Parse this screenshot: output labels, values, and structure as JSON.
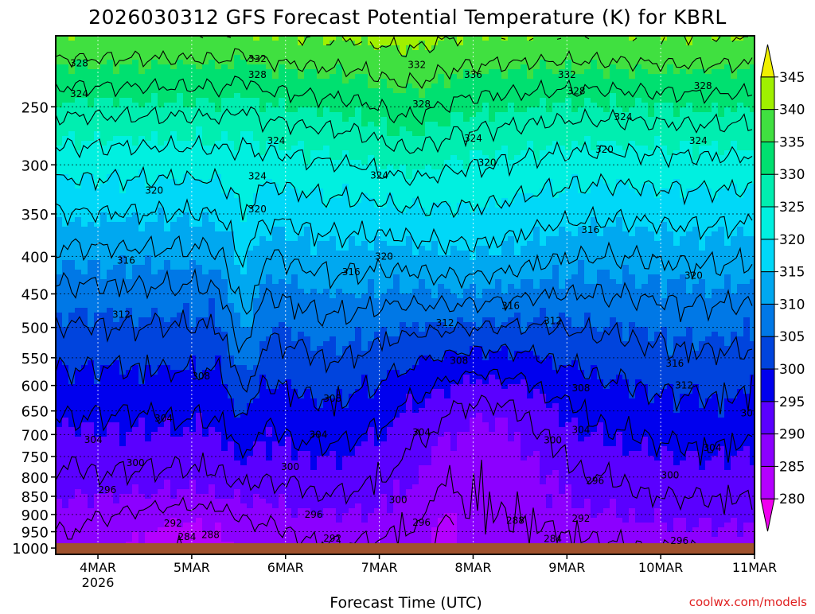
{
  "title": "2026030312 GFS Forecast Potential Temperature (K) for KBRL",
  "watermark": "coolwx.com/models",
  "chart_data": {
    "type": "heatmap",
    "title": "2026030312 GFS Forecast Potential Temperature (K) for KBRL",
    "xlabel": "Forecast Time (UTC)",
    "ylabel": "",
    "x_ticks": [
      {
        "day": 4,
        "label": "4MAR",
        "sublabel": "2026"
      },
      {
        "day": 5,
        "label": "5MAR",
        "sublabel": ""
      },
      {
        "day": 6,
        "label": "6MAR",
        "sublabel": ""
      },
      {
        "day": 7,
        "label": "7MAR",
        "sublabel": ""
      },
      {
        "day": 8,
        "label": "8MAR",
        "sublabel": ""
      },
      {
        "day": 9,
        "label": "9MAR",
        "sublabel": ""
      },
      {
        "day": 10,
        "label": "10MAR",
        "sublabel": ""
      },
      {
        "day": 11,
        "label": "11MAR",
        "sublabel": ""
      }
    ],
    "x_range_days": [
      3.55,
      11.0
    ],
    "y_axis": {
      "scale": "log-pressure",
      "units": "hPa",
      "range": [
        1020,
        200
      ],
      "ticks": [
        250,
        300,
        350,
        400,
        450,
        500,
        550,
        600,
        650,
        700,
        750,
        800,
        850,
        900,
        950,
        1000
      ]
    },
    "ground_pressure": 985,
    "ground_color": "#A0522D",
    "colorbar": {
      "levels": [
        280,
        285,
        290,
        295,
        300,
        305,
        310,
        315,
        320,
        325,
        330,
        335,
        340,
        345
      ],
      "colors": [
        "#EE00EE",
        "#B400FF",
        "#8C00FF",
        "#5A00FF",
        "#0000EE",
        "#0044DD",
        "#0078E6",
        "#00A8F0",
        "#00D8F8",
        "#00F0E0",
        "#00EEB0",
        "#00E070",
        "#40E040",
        "#A0F000",
        "#F0F000"
      ]
    },
    "contour_interval": 4,
    "contour_labels": [
      {
        "value": 328,
        "day": 3.8,
        "p": 218
      },
      {
        "value": 324,
        "day": 3.8,
        "p": 240
      },
      {
        "value": 332,
        "day": 5.7,
        "p": 215
      },
      {
        "value": 328,
        "day": 5.7,
        "p": 226
      },
      {
        "value": 332,
        "day": 7.4,
        "p": 219
      },
      {
        "value": 336,
        "day": 8.0,
        "p": 226
      },
      {
        "value": 328,
        "day": 7.45,
        "p": 248
      },
      {
        "value": 332,
        "day": 9.0,
        "p": 226
      },
      {
        "value": 328,
        "day": 9.1,
        "p": 238
      },
      {
        "value": 328,
        "day": 10.45,
        "p": 234
      },
      {
        "value": 324,
        "day": 5.9,
        "p": 278
      },
      {
        "value": 324,
        "day": 7.0,
        "p": 310
      },
      {
        "value": 324,
        "day": 8.0,
        "p": 276
      },
      {
        "value": 324,
        "day": 9.6,
        "p": 258
      },
      {
        "value": 324,
        "day": 10.4,
        "p": 278
      },
      {
        "value": 320,
        "day": 8.15,
        "p": 298
      },
      {
        "value": 320,
        "day": 9.4,
        "p": 286
      },
      {
        "value": 324,
        "day": 5.7,
        "p": 311
      },
      {
        "value": 320,
        "day": 5.7,
        "p": 345
      },
      {
        "value": 320,
        "day": 4.6,
        "p": 325
      },
      {
        "value": 316,
        "day": 9.25,
        "p": 368
      },
      {
        "value": 320,
        "day": 7.05,
        "p": 400
      },
      {
        "value": 320,
        "day": 10.35,
        "p": 425
      },
      {
        "value": 316,
        "day": 4.3,
        "p": 405
      },
      {
        "value": 316,
        "day": 6.7,
        "p": 420
      },
      {
        "value": 316,
        "day": 8.4,
        "p": 467
      },
      {
        "value": 312,
        "day": 4.25,
        "p": 480
      },
      {
        "value": 312,
        "day": 7.7,
        "p": 493
      },
      {
        "value": 312,
        "day": 8.85,
        "p": 490
      },
      {
        "value": 308,
        "day": 5.1,
        "p": 583
      },
      {
        "value": 308,
        "day": 6.5,
        "p": 625
      },
      {
        "value": 308,
        "day": 7.85,
        "p": 555
      },
      {
        "value": 308,
        "day": 9.15,
        "p": 605
      },
      {
        "value": 304,
        "day": 4.7,
        "p": 665
      },
      {
        "value": 304,
        "day": 6.35,
        "p": 700
      },
      {
        "value": 304,
        "day": 7.45,
        "p": 695
      },
      {
        "value": 304,
        "day": 9.15,
        "p": 690
      },
      {
        "value": 300,
        "day": 4.4,
        "p": 765
      },
      {
        "value": 300,
        "day": 6.05,
        "p": 775
      },
      {
        "value": 300,
        "day": 8.85,
        "p": 713
      },
      {
        "value": 304,
        "day": 3.95,
        "p": 712
      },
      {
        "value": 300,
        "day": 7.2,
        "p": 860
      },
      {
        "value": 296,
        "day": 7.45,
        "p": 923
      },
      {
        "value": 296,
        "day": 4.1,
        "p": 833
      },
      {
        "value": 296,
        "day": 6.3,
        "p": 900
      },
      {
        "value": 296,
        "day": 9.3,
        "p": 810
      },
      {
        "value": 300,
        "day": 10.1,
        "p": 795
      },
      {
        "value": 292,
        "day": 4.8,
        "p": 925
      },
      {
        "value": 292,
        "day": 6.5,
        "p": 970
      },
      {
        "value": 292,
        "day": 9.15,
        "p": 911
      },
      {
        "value": 288,
        "day": 8.45,
        "p": 917
      },
      {
        "value": 288,
        "day": 5.2,
        "p": 960
      },
      {
        "value": 284,
        "day": 4.95,
        "p": 965
      },
      {
        "value": 284,
        "day": 8.85,
        "p": 972
      },
      {
        "value": 296,
        "day": 10.2,
        "p": 978
      },
      {
        "value": 316,
        "day": 10.15,
        "p": 560
      },
      {
        "value": 312,
        "day": 10.25,
        "p": 600
      },
      {
        "value": 308,
        "day": 10.95,
        "p": 655
      },
      {
        "value": 304,
        "day": 10.55,
        "p": 730
      }
    ],
    "grid": true
  }
}
